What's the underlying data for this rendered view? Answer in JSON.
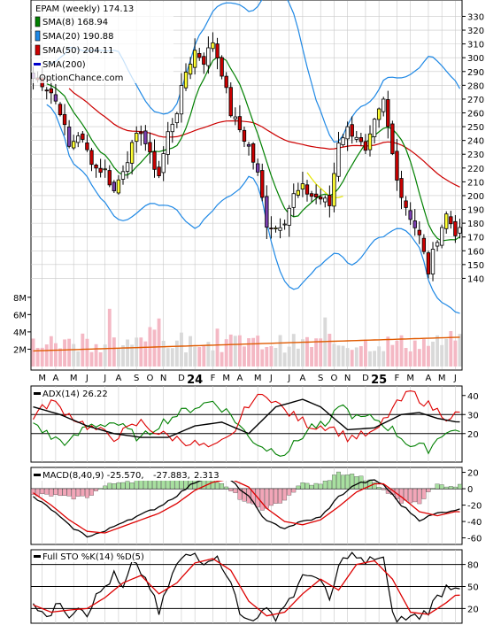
{
  "chart_data": {
    "type": "candlestick",
    "symbol_label": "EPAM (weekly) 174.13",
    "watermark": "OptionChance.com",
    "legend": [
      {
        "label": "SMA(8) 168.94",
        "color": "#008000"
      },
      {
        "label": "SMA(20) 190.88",
        "color": "#1e88e5"
      },
      {
        "label": "SMA(50) 204.11",
        "color": "#cc0000"
      },
      {
        "label": "SMA(200)",
        "color": "#0000cc"
      }
    ],
    "price_axis": {
      "ticks": [
        330,
        320,
        310,
        300,
        290,
        280,
        270,
        260,
        250,
        240,
        230,
        220,
        210,
        200,
        190,
        180,
        170,
        160,
        150,
        140
      ],
      "range": [
        130,
        338
      ]
    },
    "volume_axis": {
      "ticks": [
        "8M",
        "6M",
        "4M",
        "2M"
      ],
      "tick_values": [
        8,
        6,
        4,
        2
      ],
      "range": [
        0,
        9
      ]
    },
    "month_labels": [
      "M",
      "A",
      "M",
      "J",
      "J",
      "A",
      "S",
      "O",
      "N",
      "D",
      "24",
      "F",
      "M",
      "A",
      "M",
      "J",
      "J",
      "A",
      "S",
      "O",
      "N",
      "D",
      "25",
      "F",
      "M",
      "A",
      "M",
      "J"
    ],
    "price_key": [
      [
        0,
        285
      ],
      [
        2,
        282
      ],
      [
        4,
        275
      ],
      [
        6,
        262
      ],
      [
        8,
        235
      ],
      [
        10,
        245
      ],
      [
        12,
        232
      ],
      [
        14,
        220
      ],
      [
        16,
        218
      ],
      [
        18,
        203
      ],
      [
        20,
        220
      ],
      [
        22,
        235
      ],
      [
        24,
        248
      ],
      [
        26,
        228
      ],
      [
        28,
        215
      ],
      [
        30,
        245
      ],
      [
        32,
        262
      ],
      [
        34,
        290
      ],
      [
        36,
        305
      ],
      [
        38,
        298
      ],
      [
        40,
        312
      ],
      [
        42,
        290
      ],
      [
        44,
        260
      ],
      [
        46,
        248
      ],
      [
        48,
        235
      ],
      [
        50,
        215
      ],
      [
        52,
        180
      ],
      [
        54,
        177
      ],
      [
        56,
        183
      ],
      [
        58,
        200
      ],
      [
        60,
        205
      ],
      [
        62,
        200
      ],
      [
        64,
        198
      ],
      [
        66,
        193
      ],
      [
        68,
        240
      ],
      [
        70,
        248
      ],
      [
        72,
        244
      ],
      [
        74,
        230
      ],
      [
        76,
        252
      ],
      [
        78,
        268
      ],
      [
        80,
        230
      ],
      [
        82,
        200
      ],
      [
        84,
        185
      ],
      [
        86,
        170
      ],
      [
        88,
        145
      ],
      [
        90,
        170
      ],
      [
        92,
        186
      ],
      [
        94,
        174.13
      ]
    ],
    "indicators": [
      {
        "label": "ADX(14) 26.22",
        "ticks": [
          40,
          30,
          20
        ],
        "range": [
          5,
          45
        ],
        "ref_lines": [
          20,
          30
        ],
        "series": {
          "adx_key": [
            [
              0,
              34
            ],
            [
              6,
              30
            ],
            [
              12,
              24
            ],
            [
              18,
              20
            ],
            [
              24,
              18
            ],
            [
              30,
              18
            ],
            [
              36,
              24
            ],
            [
              42,
              26
            ],
            [
              48,
              20
            ],
            [
              54,
              34
            ],
            [
              60,
              38
            ],
            [
              64,
              34
            ],
            [
              70,
              22
            ],
            [
              76,
              23
            ],
            [
              82,
              30
            ],
            [
              86,
              31
            ],
            [
              90,
              28
            ],
            [
              94,
              26.22
            ]
          ],
          "plus_di_key": [
            [
              0,
              26
            ],
            [
              4,
              18
            ],
            [
              8,
              15
            ],
            [
              12,
              24
            ],
            [
              18,
              26
            ],
            [
              24,
              17
            ],
            [
              28,
              25
            ],
            [
              32,
              30
            ],
            [
              36,
              34
            ],
            [
              40,
              37
            ],
            [
              44,
              30
            ],
            [
              48,
              18
            ],
            [
              52,
              12
            ],
            [
              56,
              10
            ],
            [
              58,
              14
            ],
            [
              62,
              24
            ],
            [
              66,
              24
            ],
            [
              68,
              36
            ],
            [
              72,
              28
            ],
            [
              76,
              28
            ],
            [
              80,
              22
            ],
            [
              84,
              14
            ],
            [
              88,
              12
            ],
            [
              92,
              22
            ],
            [
              94,
              21
            ]
          ],
          "minus_di_key": [
            [
              0,
              29
            ],
            [
              4,
              37
            ],
            [
              8,
              30
            ],
            [
              12,
              24
            ],
            [
              18,
              18
            ],
            [
              24,
              26
            ],
            [
              28,
              20
            ],
            [
              34,
              16
            ],
            [
              40,
              12
            ],
            [
              44,
              18
            ],
            [
              48,
              36
            ],
            [
              52,
              41
            ],
            [
              56,
              32
            ],
            [
              62,
              24
            ],
            [
              66,
              24
            ],
            [
              70,
              18
            ],
            [
              76,
              20
            ],
            [
              80,
              33
            ],
            [
              84,
              42
            ],
            [
              88,
              35
            ],
            [
              92,
              29
            ],
            [
              94,
              30
            ]
          ]
        }
      },
      {
        "label": "MACD(8,40,9) -25.570,",
        "values": [
          "-27.883,",
          "2.313"
        ],
        "ticks": [
          20,
          0,
          -20,
          -40,
          -60
        ],
        "range": [
          -68,
          26
        ],
        "ref_lines": [
          0
        ],
        "series": {
          "macd_key": [
            [
              0,
              -10
            ],
            [
              4,
              -25
            ],
            [
              8,
              -45
            ],
            [
              12,
              -58
            ],
            [
              16,
              -52
            ],
            [
              20,
              -40
            ],
            [
              24,
              -32
            ],
            [
              28,
              -22
            ],
            [
              32,
              -8
            ],
            [
              36,
              8
            ],
            [
              40,
              16
            ],
            [
              44,
              10
            ],
            [
              48,
              -10
            ],
            [
              52,
              -40
            ],
            [
              56,
              -48
            ],
            [
              60,
              -40
            ],
            [
              64,
              -35
            ],
            [
              68,
              -10
            ],
            [
              72,
              6
            ],
            [
              76,
              10
            ],
            [
              78,
              5
            ],
            [
              82,
              -20
            ],
            [
              86,
              -38
            ],
            [
              90,
              -30
            ],
            [
              94,
              -25.57
            ]
          ],
          "signal_key": [
            [
              0,
              -5
            ],
            [
              4,
              -20
            ],
            [
              8,
              -38
            ],
            [
              12,
              -52
            ],
            [
              16,
              -54
            ],
            [
              20,
              -46
            ],
            [
              24,
              -38
            ],
            [
              28,
              -30
            ],
            [
              32,
              -18
            ],
            [
              36,
              -2
            ],
            [
              40,
              8
            ],
            [
              44,
              12
            ],
            [
              48,
              2
            ],
            [
              52,
              -24
            ],
            [
              56,
              -40
            ],
            [
              60,
              -44
            ],
            [
              64,
              -38
            ],
            [
              68,
              -22
            ],
            [
              72,
              -4
            ],
            [
              76,
              6
            ],
            [
              78,
              6
            ],
            [
              82,
              -10
            ],
            [
              86,
              -28
            ],
            [
              90,
              -33
            ],
            [
              94,
              -27.883
            ]
          ],
          "histogram_last": 2.313
        }
      },
      {
        "label": "Full STO %K(14) %D(5)",
        "ticks": [
          80,
          50,
          20
        ],
        "range": [
          0,
          100
        ],
        "ref_lines": [
          20,
          50,
          80
        ],
        "series": {
          "k_key": [
            [
              0,
              30
            ],
            [
              2,
              18
            ],
            [
              4,
              10
            ],
            [
              6,
              30
            ],
            [
              8,
              12
            ],
            [
              10,
              25
            ],
            [
              12,
              15
            ],
            [
              14,
              35
            ],
            [
              16,
              50
            ],
            [
              18,
              65
            ],
            [
              20,
              45
            ],
            [
              22,
              80
            ],
            [
              24,
              70
            ],
            [
              26,
              50
            ],
            [
              28,
              12
            ],
            [
              30,
              50
            ],
            [
              32,
              80
            ],
            [
              34,
              90
            ],
            [
              36,
              95
            ],
            [
              38,
              85
            ],
            [
              40,
              92
            ],
            [
              42,
              80
            ],
            [
              44,
              60
            ],
            [
              46,
              10
            ],
            [
              48,
              5
            ],
            [
              50,
              12
            ],
            [
              52,
              15
            ],
            [
              54,
              10
            ],
            [
              56,
              25
            ],
            [
              58,
              40
            ],
            [
              60,
              60
            ],
            [
              62,
              70
            ],
            [
              64,
              55
            ],
            [
              66,
              30
            ],
            [
              68,
              75
            ],
            [
              70,
              95
            ],
            [
              72,
              90
            ],
            [
              74,
              80
            ],
            [
              76,
              90
            ],
            [
              78,
              88
            ],
            [
              80,
              10
            ],
            [
              82,
              5
            ],
            [
              84,
              8
            ],
            [
              86,
              10
            ],
            [
              88,
              18
            ],
            [
              90,
              35
            ],
            [
              92,
              50
            ],
            [
              94,
              52
            ]
          ],
          "d_key": [
            [
              0,
              25
            ],
            [
              4,
              15
            ],
            [
              8,
              18
            ],
            [
              12,
              20
            ],
            [
              16,
              35
            ],
            [
              20,
              55
            ],
            [
              24,
              65
            ],
            [
              28,
              40
            ],
            [
              32,
              55
            ],
            [
              36,
              82
            ],
            [
              40,
              88
            ],
            [
              44,
              72
            ],
            [
              48,
              30
            ],
            [
              52,
              10
            ],
            [
              56,
              15
            ],
            [
              60,
              40
            ],
            [
              64,
              60
            ],
            [
              68,
              45
            ],
            [
              72,
              80
            ],
            [
              76,
              85
            ],
            [
              80,
              60
            ],
            [
              84,
              15
            ],
            [
              88,
              12
            ],
            [
              92,
              28
            ],
            [
              94,
              38
            ]
          ]
        }
      }
    ]
  }
}
